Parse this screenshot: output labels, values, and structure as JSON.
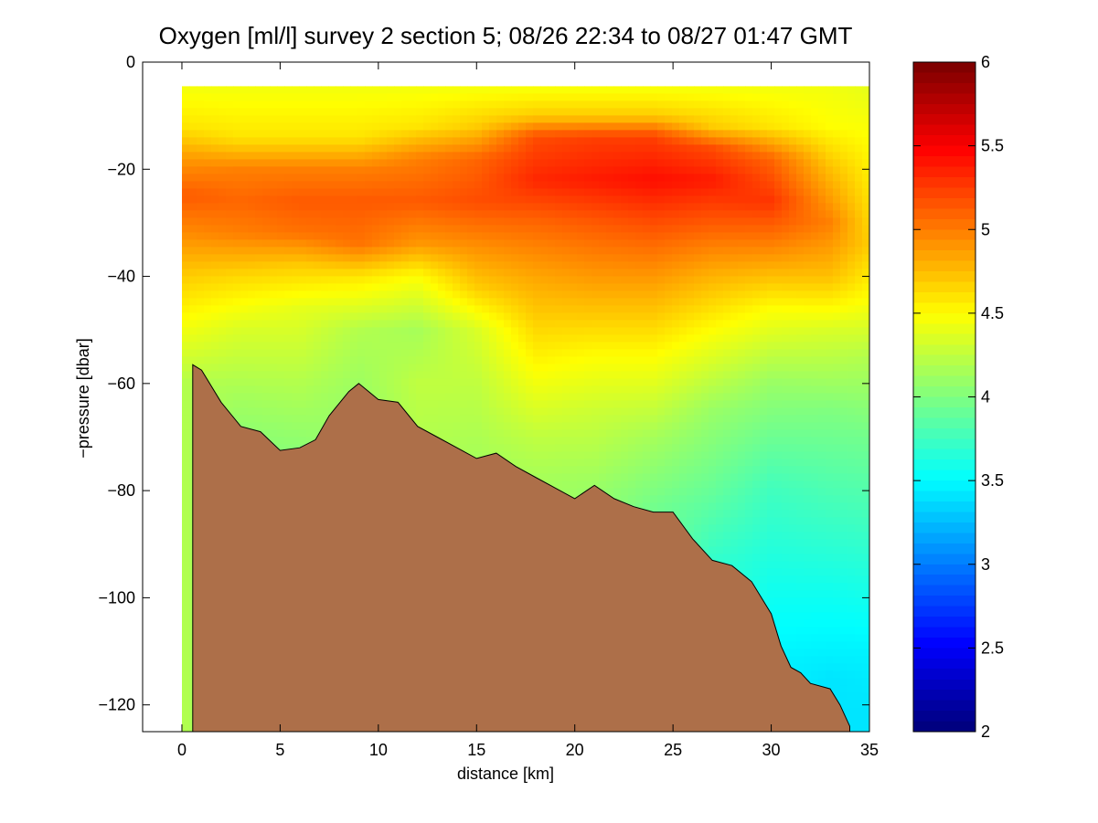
{
  "chart_data": {
    "type": "heatmap",
    "title": "Oxygen [ml/l] survey 2 section 5; 08/26 22:34 to 08/27 01:47 GMT",
    "xlabel": "distance [km]",
    "ylabel": "−pressure [dbar]",
    "xlim": [
      -2,
      35
    ],
    "ylim": [
      -125,
      0
    ],
    "xticks": [
      0,
      5,
      10,
      15,
      20,
      25,
      30,
      35
    ],
    "xtick_labels": [
      "0",
      "5",
      "10",
      "15",
      "20",
      "25",
      "30",
      "35"
    ],
    "yticks": [
      0,
      -20,
      -40,
      -60,
      -80,
      -100,
      -120
    ],
    "ytick_labels": [
      "0",
      "−20",
      "−40",
      "−60",
      "−80",
      "−100",
      "−120"
    ],
    "colorbar": {
      "colormap": "jet",
      "range": [
        2,
        6
      ],
      "ticks": [
        2,
        2.5,
        3,
        3.5,
        4,
        4.5,
        5,
        5.5,
        6
      ],
      "tick_labels": [
        "2",
        "2.5",
        "3",
        "3.5",
        "4",
        "4.5",
        "5",
        "5.5",
        "6"
      ],
      "placement": "right"
    },
    "grid": false,
    "data_extent": {
      "x": [
        0,
        35
      ],
      "top_pressure": -4.5
    },
    "oxygen_profiles": [
      {
        "x": 0,
        "points": [
          [
            -4.5,
            4.45
          ],
          [
            -12,
            4.6
          ],
          [
            -18,
            4.9
          ],
          [
            -25,
            5.15
          ],
          [
            -32,
            4.95
          ],
          [
            -40,
            4.7
          ],
          [
            -48,
            4.5
          ],
          [
            -60,
            4.2
          ]
        ]
      },
      {
        "x": 3,
        "points": [
          [
            -4.5,
            4.45
          ],
          [
            -14,
            4.6
          ],
          [
            -20,
            5.0
          ],
          [
            -26,
            5.1
          ],
          [
            -32,
            5.0
          ],
          [
            -40,
            4.65
          ],
          [
            -50,
            4.35
          ],
          [
            -62,
            4.15
          ],
          [
            -70,
            4.05
          ]
        ]
      },
      {
        "x": 6,
        "points": [
          [
            -4.5,
            4.45
          ],
          [
            -14,
            4.6
          ],
          [
            -20,
            5.0
          ],
          [
            -26,
            5.15
          ],
          [
            -32,
            5.05
          ],
          [
            -38,
            4.7
          ],
          [
            -46,
            4.4
          ],
          [
            -60,
            4.2
          ],
          [
            -72,
            4.05
          ]
        ]
      },
      {
        "x": 9,
        "points": [
          [
            -4.5,
            4.45
          ],
          [
            -14,
            4.6
          ],
          [
            -20,
            5.0
          ],
          [
            -26,
            5.15
          ],
          [
            -34,
            5.05
          ],
          [
            -40,
            4.6
          ],
          [
            -50,
            4.2
          ],
          [
            -62,
            4.1
          ]
        ]
      },
      {
        "x": 12,
        "points": [
          [
            -4.5,
            4.45
          ],
          [
            -12,
            4.6
          ],
          [
            -18,
            5.0
          ],
          [
            -26,
            5.15
          ],
          [
            -34,
            4.9
          ],
          [
            -40,
            4.5
          ],
          [
            -50,
            4.15
          ],
          [
            -60,
            4.25
          ],
          [
            -70,
            4.2
          ]
        ]
      },
      {
        "x": 15,
        "points": [
          [
            -4.5,
            4.45
          ],
          [
            -12,
            4.7
          ],
          [
            -18,
            5.1
          ],
          [
            -26,
            5.2
          ],
          [
            -34,
            4.95
          ],
          [
            -42,
            4.7
          ],
          [
            -50,
            4.35
          ],
          [
            -60,
            4.25
          ],
          [
            -74,
            4.15
          ]
        ]
      },
      {
        "x": 18,
        "points": [
          [
            -4.5,
            4.45
          ],
          [
            -10,
            4.7
          ],
          [
            -14,
            5.2
          ],
          [
            -22,
            5.35
          ],
          [
            -30,
            5.1
          ],
          [
            -40,
            4.85
          ],
          [
            -50,
            4.65
          ],
          [
            -60,
            4.45
          ],
          [
            -70,
            4.25
          ],
          [
            -78,
            4.15
          ]
        ]
      },
      {
        "x": 21,
        "points": [
          [
            -4.5,
            4.45
          ],
          [
            -10,
            4.7
          ],
          [
            -14,
            5.25
          ],
          [
            -22,
            5.4
          ],
          [
            -30,
            5.15
          ],
          [
            -42,
            4.85
          ],
          [
            -55,
            4.5
          ],
          [
            -65,
            4.3
          ],
          [
            -80,
            4.1
          ]
        ]
      },
      {
        "x": 24,
        "points": [
          [
            -4.5,
            4.45
          ],
          [
            -10,
            4.7
          ],
          [
            -14,
            5.25
          ],
          [
            -22,
            5.45
          ],
          [
            -30,
            5.2
          ],
          [
            -42,
            4.85
          ],
          [
            -55,
            4.5
          ],
          [
            -70,
            4.15
          ],
          [
            -83,
            3.95
          ]
        ]
      },
      {
        "x": 27,
        "points": [
          [
            -4.5,
            4.45
          ],
          [
            -12,
            4.7
          ],
          [
            -16,
            5.2
          ],
          [
            -22,
            5.4
          ],
          [
            -30,
            5.15
          ],
          [
            -40,
            4.8
          ],
          [
            -50,
            4.5
          ],
          [
            -65,
            4.1
          ],
          [
            -80,
            3.9
          ],
          [
            -93,
            3.7
          ]
        ]
      },
      {
        "x": 30,
        "points": [
          [
            -4.5,
            4.45
          ],
          [
            -12,
            4.6
          ],
          [
            -18,
            5.1
          ],
          [
            -26,
            5.3
          ],
          [
            -34,
            5.0
          ],
          [
            -46,
            4.5
          ],
          [
            -60,
            4.1
          ],
          [
            -80,
            3.75
          ],
          [
            -100,
            3.55
          ],
          [
            -112,
            3.45
          ]
        ]
      },
      {
        "x": 33,
        "points": [
          [
            -4.5,
            4.45
          ],
          [
            -12,
            4.5
          ],
          [
            -20,
            4.75
          ],
          [
            -30,
            5.0
          ],
          [
            -40,
            4.75
          ],
          [
            -50,
            4.35
          ],
          [
            -65,
            4.0
          ],
          [
            -80,
            3.8
          ],
          [
            -100,
            3.55
          ],
          [
            -115,
            3.4
          ]
        ]
      },
      {
        "x": 35,
        "points": [
          [
            -4.5,
            4.4
          ],
          [
            -14,
            4.5
          ],
          [
            -24,
            4.6
          ],
          [
            -34,
            4.7
          ],
          [
            -44,
            4.5
          ],
          [
            -55,
            4.2
          ],
          [
            -70,
            3.95
          ],
          [
            -90,
            3.7
          ],
          [
            -110,
            3.45
          ],
          [
            -120,
            3.4
          ]
        ]
      }
    ],
    "bottom_profile": {
      "x": [
        0.55,
        1.0,
        2.0,
        3.0,
        4.0,
        5.0,
        6.0,
        6.8,
        7.5,
        8.5,
        9.0,
        10.0,
        11.0,
        12.0,
        13.0,
        14.0,
        15.0,
        16.0,
        17.0,
        18.0,
        19.0,
        20.0,
        21.0,
        22.0,
        23.0,
        24.0,
        25.0,
        26.0,
        27.0,
        28.0,
        29.0,
        30.0,
        30.5,
        31.0,
        31.5,
        32.0,
        33.0,
        33.5,
        34.0
      ],
      "y": [
        -56.5,
        -57.5,
        -63.5,
        -68.0,
        -69.0,
        -72.5,
        -72.0,
        -70.5,
        -66.0,
        -61.5,
        -60.0,
        -63.0,
        -63.5,
        -68.0,
        -70.0,
        -72.0,
        -74.0,
        -73.0,
        -75.5,
        -77.5,
        -79.5,
        -81.5,
        -79.0,
        -81.5,
        -83.0,
        -84.0,
        -84.0,
        -89.0,
        -93.0,
        -94.0,
        -97.0,
        -103.0,
        -109.0,
        -113.0,
        -114.0,
        -116.0,
        -117.0,
        -120.0,
        -124.0
      ]
    }
  }
}
